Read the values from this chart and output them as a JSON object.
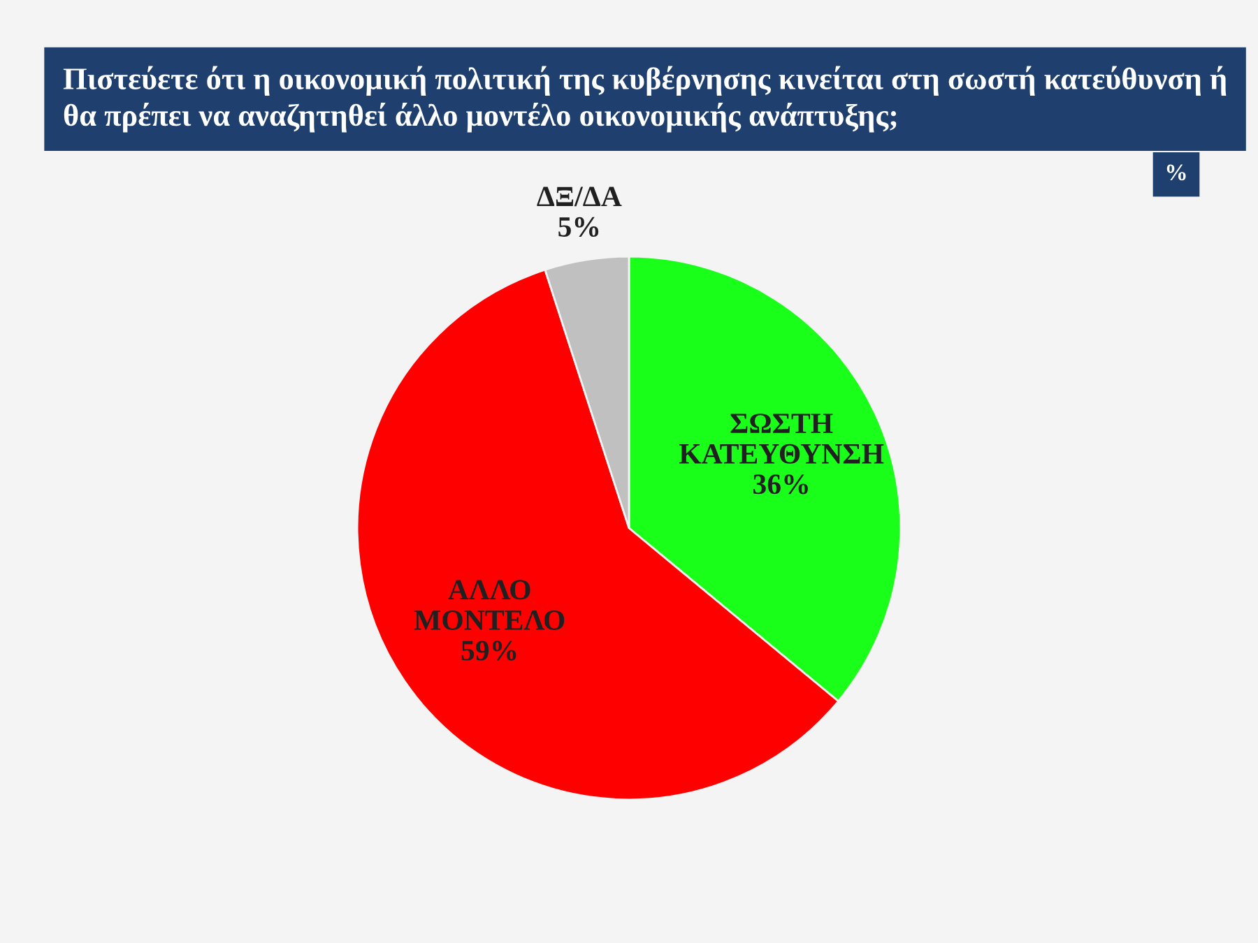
{
  "chart_data": {
    "type": "pie",
    "title": "Πιστεύετε ότι η οικονομική πολιτική της κυβέρνησης κινείται στη σωστή κατεύθυνση ή θα πρέπει να αναζητηθεί άλλο μοντέλο οικονομικής ανάπτυξης;",
    "annotations": [
      "%"
    ],
    "categories": [
      "ΣΩΣΤΗ ΚΑΤΕΥΘΥΝΣΗ",
      "ΑΛΛΟ ΜΟΝΤΕΛΟ",
      "ΔΞ/ΔΑ"
    ],
    "values": [
      36,
      59,
      5
    ],
    "value_labels": [
      "36%",
      "59%",
      "5%"
    ],
    "colors": [
      "#1aff1a",
      "#ff0000",
      "#c0c0c0"
    ],
    "legend": false
  }
}
